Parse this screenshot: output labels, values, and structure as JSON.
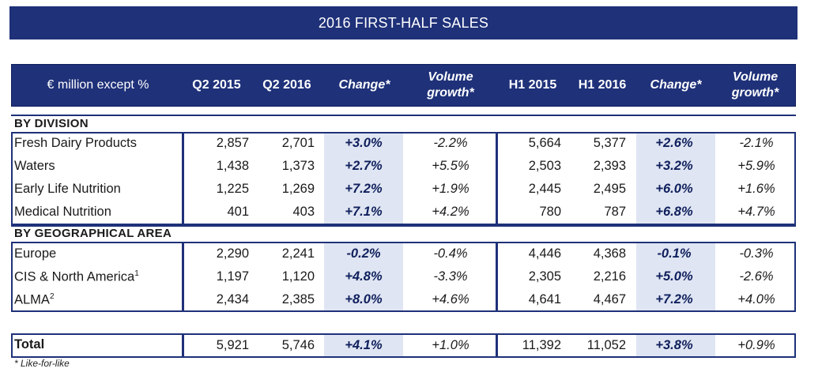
{
  "title": "2016 FIRST-HALF SALES",
  "header": {
    "label": "€ million except %",
    "q2_2015": "Q2 2015",
    "q2_2016": "Q2 2016",
    "change_q": "Change*",
    "volume_q_line1": "Volume",
    "volume_q_line2": "growth*",
    "h1_2015": "H1 2015",
    "h1_2016": "H1 2016",
    "change_h": "Change*",
    "volume_h_line1": "Volume",
    "volume_h_line2": "growth*"
  },
  "sections": {
    "division": "BY DIVISION",
    "geo": "BY GEOGRAPHICAL AREA"
  },
  "division_rows": [
    {
      "label": "Fresh Dairy Products",
      "sup": "",
      "q2_2015": "2,857",
      "q2_2016": "2,701",
      "change_q": "+3.0%",
      "vol_q": "-2.2%",
      "h1_2015": "5,664",
      "h1_2016": "5,377",
      "change_h": "+2.6%",
      "vol_h": "-2.1%"
    },
    {
      "label": "Waters",
      "sup": "",
      "q2_2015": "1,438",
      "q2_2016": "1,373",
      "change_q": "+2.7%",
      "vol_q": "+5.5%",
      "h1_2015": "2,503",
      "h1_2016": "2,393",
      "change_h": "+3.2%",
      "vol_h": "+5.9%"
    },
    {
      "label": "Early Life Nutrition",
      "sup": "",
      "q2_2015": "1,225",
      "q2_2016": "1,269",
      "change_q": "+7.2%",
      "vol_q": "+1.9%",
      "h1_2015": "2,445",
      "h1_2016": "2,495",
      "change_h": "+6.0%",
      "vol_h": "+1.6%"
    },
    {
      "label": "Medical Nutrition",
      "sup": "",
      "q2_2015": "401",
      "q2_2016": "403",
      "change_q": "+7.1%",
      "vol_q": "+4.2%",
      "h1_2015": "780",
      "h1_2016": "787",
      "change_h": "+6.8%",
      "vol_h": "+4.7%"
    }
  ],
  "geo_rows": [
    {
      "label": "Europe",
      "sup": "",
      "q2_2015": "2,290",
      "q2_2016": "2,241",
      "change_q": "-0.2%",
      "vol_q": "-0.4%",
      "h1_2015": "4,446",
      "h1_2016": "4,368",
      "change_h": "-0.1%",
      "vol_h": "-0.3%"
    },
    {
      "label": "CIS & North America",
      "sup": "1",
      "q2_2015": "1,197",
      "q2_2016": "1,120",
      "change_q": "+4.8%",
      "vol_q": "-3.3%",
      "h1_2015": "2,305",
      "h1_2016": "2,216",
      "change_h": "+5.0%",
      "vol_h": "-2.6%"
    },
    {
      "label": "ALMA",
      "sup": "2",
      "q2_2015": "2,434",
      "q2_2016": "2,385",
      "change_q": "+8.0%",
      "vol_q": "+4.6%",
      "h1_2015": "4,641",
      "h1_2016": "4,467",
      "change_h": "+7.2%",
      "vol_h": "+4.0%"
    }
  ],
  "total": {
    "label": "Total",
    "q2_2015": "5,921",
    "q2_2016": "5,746",
    "change_q": "+4.1%",
    "vol_q": "+1.0%",
    "h1_2015": "11,392",
    "h1_2016": "11,052",
    "change_h": "+3.8%",
    "vol_h": "+0.9%"
  },
  "footnote": "* Like-for-like",
  "colors": {
    "header_bg": "#1f3179",
    "shade": "#dfe5f2",
    "text": "#1a1a1a"
  }
}
